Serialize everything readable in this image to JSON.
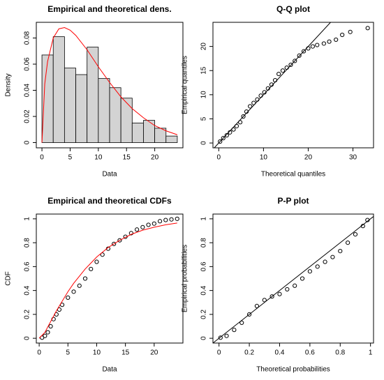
{
  "chart_data": [
    {
      "type": "histogram",
      "title": "Empirical and theoretical dens.",
      "xlabel": "Data",
      "ylabel": "Density",
      "bins": [
        0,
        2,
        4,
        6,
        8,
        10,
        12,
        14,
        16,
        18,
        20,
        22,
        24
      ],
      "values": [
        0.067,
        0.081,
        0.057,
        0.052,
        0.073,
        0.049,
        0.042,
        0.034,
        0.015,
        0.017,
        0.011,
        0.005
      ],
      "color": "#d3d3d3",
      "curve": {
        "color": "#ff0000",
        "x": [
          0,
          0.5,
          1,
          2,
          3,
          4,
          5,
          6,
          8,
          10,
          12,
          14,
          16,
          18,
          20,
          22,
          24
        ],
        "values": [
          0,
          0.045,
          0.062,
          0.08,
          0.087,
          0.088,
          0.086,
          0.082,
          0.071,
          0.058,
          0.046,
          0.035,
          0.026,
          0.019,
          0.013,
          0.009,
          0.006
        ]
      },
      "xlim": [
        -1,
        25
      ],
      "ylim": [
        -0.004,
        0.092
      ],
      "xticks": [
        0,
        5,
        10,
        15,
        20
      ],
      "yticks": [
        0.0,
        0.02,
        0.04,
        0.06,
        0.08
      ]
    },
    {
      "type": "scatter",
      "title": "Q-Q plot",
      "xlabel": "Theoretical quantiles",
      "ylabel": "Empirical quantiles",
      "color": "#000000",
      "reference_line": true,
      "x": [
        0.3,
        1,
        1.8,
        2.5,
        3.3,
        4,
        4.8,
        5.5,
        6.2,
        7,
        7.8,
        8.6,
        9.4,
        10.2,
        11,
        11.8,
        12.6,
        13.4,
        14.3,
        15.2,
        16.1,
        17,
        18,
        19,
        20,
        21,
        22,
        23.5,
        24.7,
        26.2,
        27.6,
        29.4,
        33.3
      ],
      "values": [
        0.3,
        1,
        1.6,
        2.2,
        2.8,
        3.5,
        4.3,
        5.5,
        6.5,
        7.6,
        8.3,
        9,
        9.8,
        10.5,
        11.3,
        12.1,
        13,
        14.3,
        15,
        15.6,
        16.2,
        17,
        18.1,
        19,
        19.6,
        20,
        20.3,
        20.6,
        21,
        21.4,
        22.4,
        23,
        23.8
      ],
      "xlim": [
        -1.3,
        34.6
      ],
      "ylim": [
        -1,
        25
      ],
      "xticks": [
        0,
        10,
        20,
        30
      ],
      "yticks": [
        0,
        5,
        10,
        15,
        20
      ]
    },
    {
      "type": "scatter",
      "title": "Empirical and theoretical CDFs",
      "xlabel": "Data",
      "ylabel": "CDF",
      "color": "#000000",
      "x": [
        0.5,
        1,
        1.5,
        2,
        2.5,
        3,
        3.5,
        4,
        5,
        6,
        7,
        8,
        9,
        10,
        11,
        12,
        13,
        14,
        15,
        16,
        17,
        18,
        19,
        20,
        21,
        22,
        23,
        24
      ],
      "values": [
        0.005,
        0.02,
        0.05,
        0.1,
        0.16,
        0.2,
        0.24,
        0.28,
        0.34,
        0.39,
        0.44,
        0.5,
        0.58,
        0.64,
        0.7,
        0.75,
        0.79,
        0.82,
        0.85,
        0.88,
        0.91,
        0.93,
        0.95,
        0.96,
        0.98,
        0.99,
        0.995,
        1
      ],
      "curve": {
        "color": "#ff0000",
        "x": [
          0,
          1,
          2,
          3,
          4,
          5,
          6,
          7,
          8,
          9,
          10,
          12,
          14,
          16,
          18,
          20,
          22,
          24
        ],
        "values": [
          0,
          0.05,
          0.14,
          0.23,
          0.31,
          0.39,
          0.46,
          0.52,
          0.58,
          0.63,
          0.68,
          0.76,
          0.82,
          0.87,
          0.905,
          0.93,
          0.95,
          0.965
        ]
      },
      "xlim": [
        -0.5,
        25
      ],
      "ylim": [
        -0.04,
        1.04
      ],
      "xticks": [
        0,
        5,
        10,
        15,
        20
      ],
      "yticks": [
        0.0,
        0.2,
        0.4,
        0.6,
        0.8,
        1.0
      ]
    },
    {
      "type": "scatter",
      "title": "P-P plot",
      "xlabel": "Theoretical probabilities",
      "ylabel": "Empirical probabilities",
      "color": "#000000",
      "reference_line": true,
      "x": [
        0.01,
        0.05,
        0.1,
        0.15,
        0.2,
        0.25,
        0.3,
        0.35,
        0.4,
        0.45,
        0.5,
        0.55,
        0.6,
        0.65,
        0.7,
        0.75,
        0.8,
        0.85,
        0.9,
        0.95,
        0.98
      ],
      "values": [
        0.005,
        0.02,
        0.07,
        0.13,
        0.2,
        0.27,
        0.32,
        0.35,
        0.37,
        0.41,
        0.44,
        0.5,
        0.56,
        0.6,
        0.64,
        0.68,
        0.73,
        0.8,
        0.87,
        0.94,
        0.99
      ],
      "xlim": [
        -0.04,
        1.02
      ],
      "ylim": [
        -0.04,
        1.04
      ],
      "xticks": [
        0.0,
        0.2,
        0.4,
        0.6,
        0.8,
        1.0
      ],
      "yticks": [
        0.0,
        0.2,
        0.4,
        0.6,
        0.8,
        1.0
      ]
    }
  ]
}
